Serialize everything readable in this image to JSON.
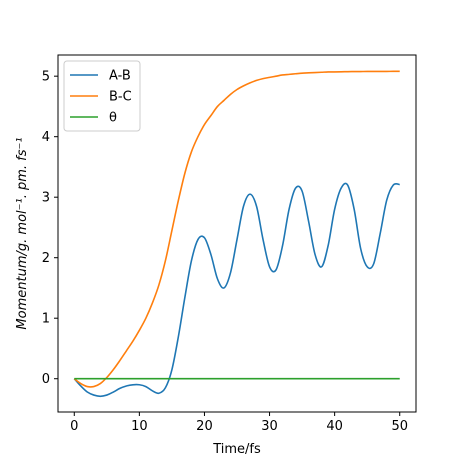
{
  "chart_data": {
    "type": "line",
    "xlabel": "Time/fs",
    "ylabel": "Momentum/g. mol⁻¹. pm. fs⁻¹",
    "xlim": [
      -2.5,
      52.5
    ],
    "ylim": [
      -0.55,
      5.35
    ],
    "x_ticks": [
      0,
      10,
      20,
      30,
      40,
      50
    ],
    "y_ticks": [
      0,
      1,
      2,
      3,
      4,
      5
    ],
    "x_tick_labels": [
      "0",
      "10",
      "20",
      "30",
      "40",
      "50"
    ],
    "y_tick_labels": [
      "0",
      "1",
      "2",
      "3",
      "4",
      "5"
    ],
    "grid": false,
    "legend_position": "top-left",
    "series": [
      {
        "name": "A-B",
        "color": "#1f77b4",
        "x": [
          0,
          1,
          2,
          3,
          4,
          5,
          6,
          7,
          8,
          9,
          10,
          11,
          12,
          13,
          14,
          15,
          16,
          17,
          18,
          19,
          20,
          21,
          22,
          23,
          24,
          25,
          26,
          27,
          28,
          29,
          30,
          31,
          32,
          33,
          34,
          35,
          36,
          37,
          38,
          39,
          40,
          41,
          42,
          43,
          44,
          45,
          46,
          47,
          48,
          49,
          50
        ],
        "y": [
          0.0,
          -0.12,
          -0.22,
          -0.27,
          -0.29,
          -0.27,
          -0.22,
          -0.16,
          -0.12,
          -0.1,
          -0.1,
          -0.13,
          -0.2,
          -0.24,
          -0.15,
          0.15,
          0.7,
          1.35,
          1.95,
          2.3,
          2.33,
          2.05,
          1.65,
          1.5,
          1.75,
          2.3,
          2.85,
          3.05,
          2.85,
          2.3,
          1.85,
          1.8,
          2.2,
          2.8,
          3.15,
          3.1,
          2.6,
          2.05,
          1.85,
          2.2,
          2.8,
          3.15,
          3.2,
          2.8,
          2.15,
          1.85,
          1.9,
          2.4,
          2.95,
          3.2,
          3.21
        ]
      },
      {
        "name": "B-C",
        "color": "#ff7f0e",
        "x": [
          0,
          1,
          2,
          3,
          4,
          5,
          6,
          7,
          8,
          9,
          10,
          11,
          12,
          13,
          14,
          15,
          16,
          17,
          18,
          19,
          20,
          21,
          22,
          23,
          24,
          25,
          26,
          27,
          28,
          29,
          30,
          31,
          32,
          33,
          34,
          35,
          36,
          37,
          38,
          39,
          40,
          41,
          42,
          43,
          44,
          45,
          46,
          47,
          48,
          49,
          50
        ],
        "y": [
          0.0,
          -0.08,
          -0.13,
          -0.13,
          -0.08,
          0.02,
          0.15,
          0.3,
          0.46,
          0.62,
          0.8,
          1.0,
          1.25,
          1.55,
          1.95,
          2.45,
          2.95,
          3.4,
          3.75,
          4.0,
          4.2,
          4.35,
          4.5,
          4.6,
          4.7,
          4.78,
          4.84,
          4.89,
          4.93,
          4.96,
          4.98,
          5.0,
          5.02,
          5.03,
          5.04,
          5.05,
          5.055,
          5.06,
          5.065,
          5.07,
          5.07,
          5.072,
          5.075,
          5.076,
          5.077,
          5.078,
          5.078,
          5.079,
          5.079,
          5.08,
          5.08
        ]
      },
      {
        "name": "θ",
        "color": "#2ca02c",
        "x": [
          0,
          50
        ],
        "y": [
          0.0,
          0.0
        ]
      }
    ]
  }
}
